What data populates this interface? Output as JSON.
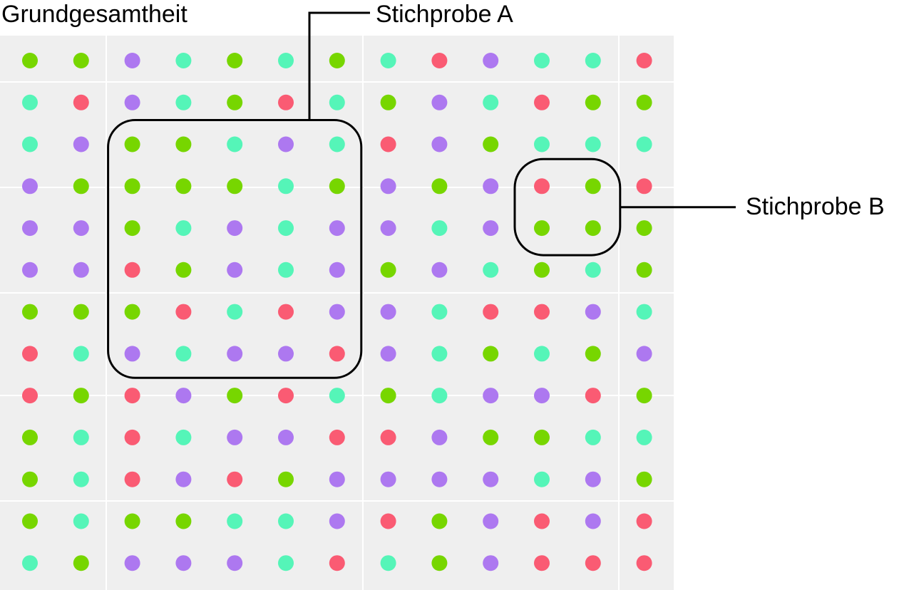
{
  "labels": {
    "population": "Grundgesamtheit",
    "sample_a": "Stichprobe A",
    "sample_b": "Stichprobe B"
  },
  "colors": {
    "background": "#efefef",
    "grid_line": "#ffffff",
    "outline": "#000000",
    "G": "#77d600",
    "T": "#55f5b8",
    "P": "#ad78f0",
    "R": "#fa5b73"
  },
  "grid": {
    "rows": 13,
    "cols": 13,
    "dots": [
      [
        "G",
        "G",
        "P",
        "T",
        "G",
        "T",
        "G",
        "T",
        "R",
        "P",
        "T",
        "T",
        "R"
      ],
      [
        "T",
        "R",
        "P",
        "T",
        "G",
        "R",
        "T",
        "G",
        "P",
        "T",
        "R",
        "G",
        "G"
      ],
      [
        "T",
        "P",
        "G",
        "G",
        "T",
        "P",
        "T",
        "R",
        "P",
        "G",
        "T",
        "T",
        "T"
      ],
      [
        "P",
        "G",
        "G",
        "G",
        "G",
        "T",
        "G",
        "P",
        "G",
        "P",
        "R",
        "G",
        "R"
      ],
      [
        "P",
        "P",
        "G",
        "T",
        "P",
        "T",
        "P",
        "P",
        "T",
        "P",
        "G",
        "G",
        "G"
      ],
      [
        "P",
        "P",
        "R",
        "G",
        "P",
        "T",
        "P",
        "G",
        "P",
        "T",
        "G",
        "T",
        "G"
      ],
      [
        "G",
        "G",
        "G",
        "R",
        "T",
        "R",
        "P",
        "P",
        "T",
        "R",
        "R",
        "P",
        "T"
      ],
      [
        "R",
        "T",
        "P",
        "T",
        "P",
        "P",
        "R",
        "P",
        "T",
        "G",
        "T",
        "G",
        "P"
      ],
      [
        "R",
        "G",
        "R",
        "P",
        "G",
        "R",
        "T",
        "G",
        "T",
        "P",
        "P",
        "R",
        "G"
      ],
      [
        "G",
        "T",
        "R",
        "T",
        "P",
        "P",
        "R",
        "R",
        "P",
        "G",
        "G",
        "T",
        "T"
      ],
      [
        "G",
        "T",
        "R",
        "P",
        "R",
        "G",
        "P",
        "P",
        "P",
        "P",
        "T",
        "P",
        "G"
      ],
      [
        "G",
        "T",
        "G",
        "G",
        "T",
        "T",
        "P",
        "R",
        "G",
        "P",
        "R",
        "P",
        "R"
      ],
      [
        "T",
        "G",
        "P",
        "P",
        "P",
        "T",
        "R",
        "T",
        "G",
        "P",
        "R",
        "R",
        "R"
      ]
    ]
  },
  "samples": {
    "A": {
      "rows": [
        2,
        7
      ],
      "cols": [
        2,
        6
      ]
    },
    "B": {
      "rows": [
        3,
        4
      ],
      "cols": [
        10,
        11
      ]
    }
  }
}
